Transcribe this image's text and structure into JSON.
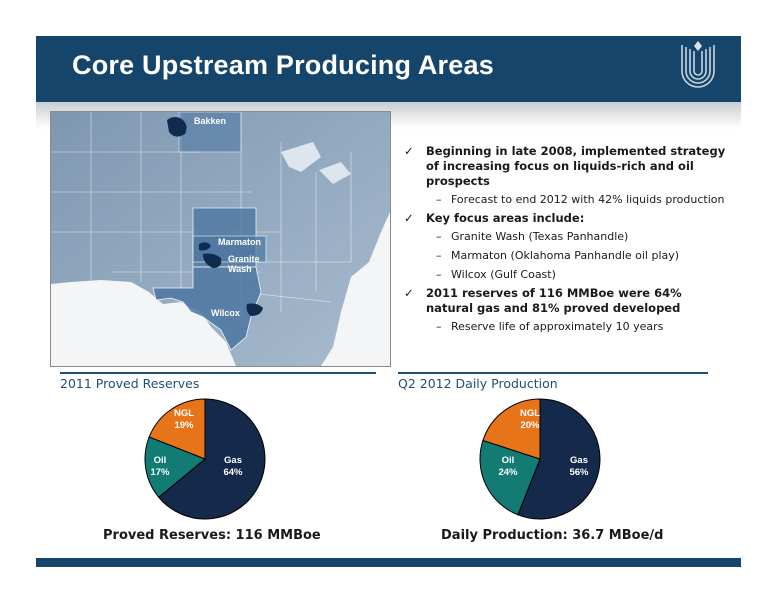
{
  "slide": {
    "title": "Core Upstream Producing Areas",
    "colors": {
      "header": "#15456a",
      "accent": "#1f4e79",
      "gas": "#15294a",
      "oil": "#127b74",
      "ngl": "#e8741a"
    }
  },
  "map": {
    "labels": {
      "bakken": "Bakken",
      "marmaton": "Marmaton",
      "granite_line1": "Granite",
      "granite_line2": "Wash",
      "wilcox": "Wilcox"
    }
  },
  "bullets": [
    {
      "text": "Beginning in late 2008, implemented strategy of increasing focus on liquids-rich and oil prospects",
      "subs": [
        "Forecast to end 2012 with 42% liquids production"
      ]
    },
    {
      "text": "Key focus areas include:",
      "subs": [
        "Granite Wash (Texas Panhandle)",
        "Marmaton (Oklahoma Panhandle oil play)",
        "Wilcox (Gulf Coast)"
      ]
    },
    {
      "text": "2011 reserves of 116 MMBoe were 64% natural gas and 81% proved developed",
      "subs": [
        "Reserve life of approximately 10 years"
      ]
    }
  ],
  "check_glyph": "✓",
  "dash_glyph": "–",
  "sections": {
    "left": {
      "title": "2011 Proved Reserves",
      "caption": "Proved Reserves: 116 MMBoe"
    },
    "right": {
      "title": "Q2 2012 Daily Production",
      "caption": "Daily Production: 36.7 MBoe/d"
    }
  },
  "chart_data": [
    {
      "type": "pie",
      "title": "2011 Proved Reserves",
      "categories": [
        "Gas",
        "Oil",
        "NGL"
      ],
      "values": [
        64,
        17,
        19
      ],
      "labels": [
        "64%",
        "17%",
        "19%"
      ],
      "colors": [
        "#15294a",
        "#127b74",
        "#e8741a"
      ]
    },
    {
      "type": "pie",
      "title": "Q2 2012 Daily Production",
      "categories": [
        "Gas",
        "Oil",
        "NGL"
      ],
      "values": [
        56,
        24,
        20
      ],
      "labels": [
        "56%",
        "24%",
        "20%"
      ],
      "colors": [
        "#15294a",
        "#127b74",
        "#e8741a"
      ]
    }
  ]
}
